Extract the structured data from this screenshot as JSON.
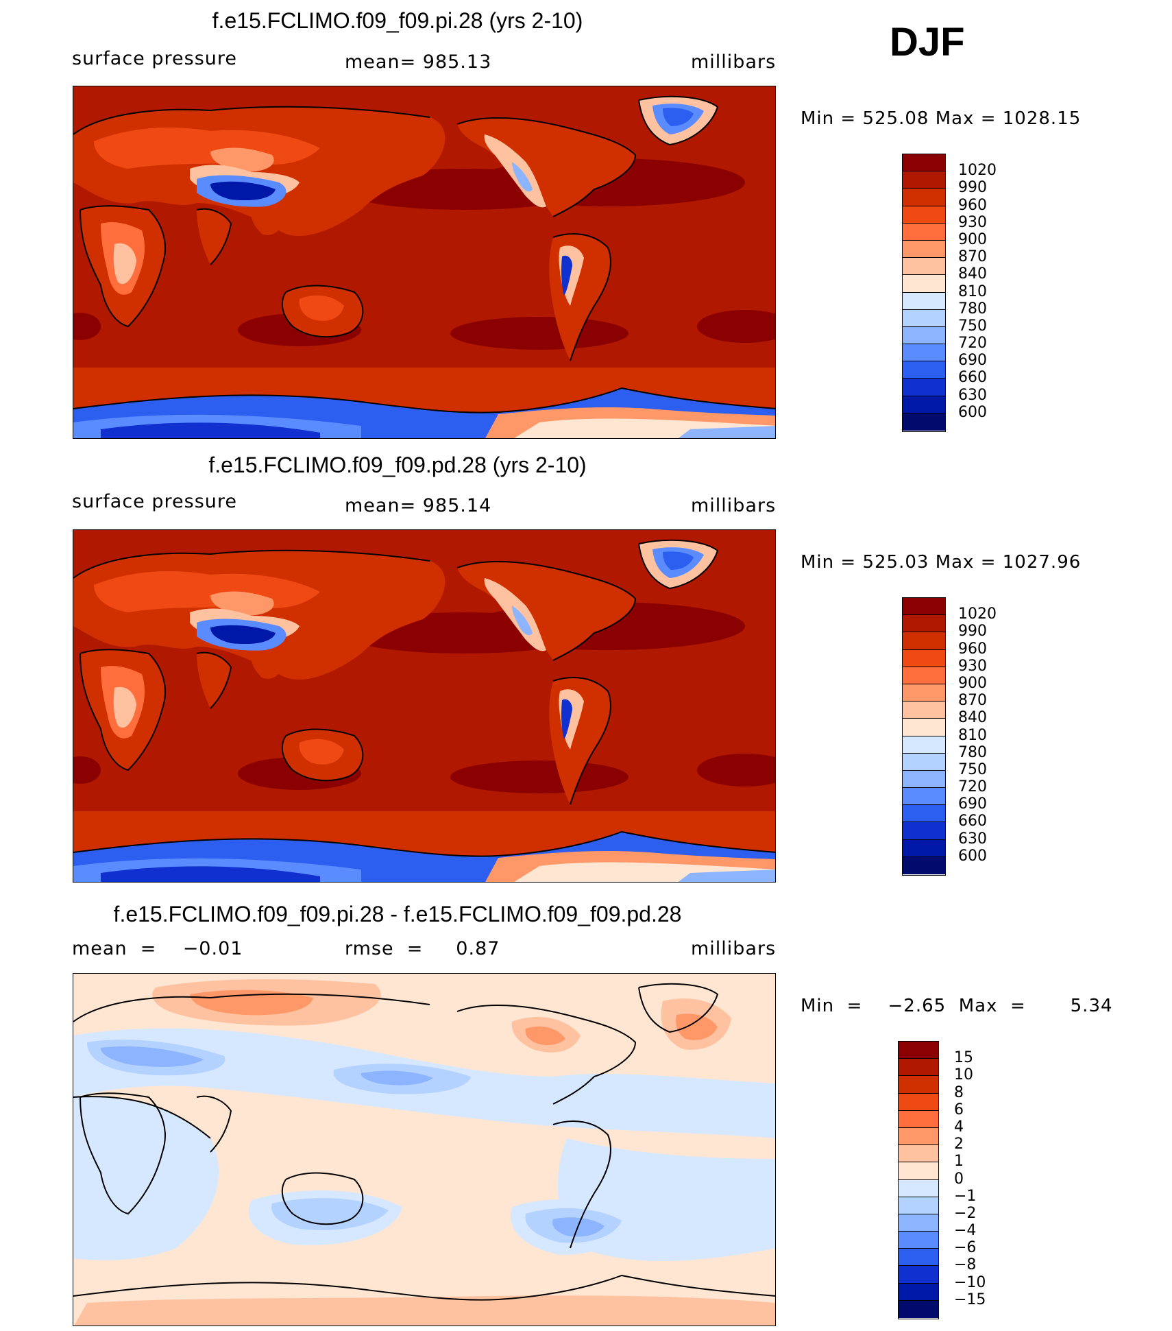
{
  "season": "DJF",
  "panels": [
    {
      "title": "f.e15.FCLIMO.f09_f09.pi.28 (yrs 2-10)",
      "left_text": "surface pressure",
      "center_text": "mean=  985.13",
      "units": "millibars",
      "minmax": "Min  =  525.08  Max  =  1028.15",
      "colorbar": {
        "labels": [
          "1020",
          "990",
          "960",
          "930",
          "900",
          "870",
          "840",
          "810",
          "780",
          "750",
          "720",
          "690",
          "660",
          "630",
          "600"
        ],
        "colors": [
          "#8b0000",
          "#b01800",
          "#d03000",
          "#f04a14",
          "#ff6e3c",
          "#ff9868",
          "#ffc2a0",
          "#ffe6d2",
          "#d6e8ff",
          "#b4d2ff",
          "#8cb4ff",
          "#5a8cff",
          "#2c5ef0",
          "#1030d0",
          "#0018a8",
          "#000b6e"
        ]
      }
    },
    {
      "title": "f.e15.FCLIMO.f09_f09.pd.28 (yrs 2-10)",
      "left_text": "surface pressure",
      "center_text": "mean=  985.14",
      "units": "millibars",
      "minmax": "Min  =  525.03  Max  =  1027.96",
      "colorbar": {
        "labels": [
          "1020",
          "990",
          "960",
          "930",
          "900",
          "870",
          "840",
          "810",
          "780",
          "750",
          "720",
          "690",
          "660",
          "630",
          "600"
        ],
        "colors": [
          "#8b0000",
          "#b01800",
          "#d03000",
          "#f04a14",
          "#ff6e3c",
          "#ff9868",
          "#ffc2a0",
          "#ffe6d2",
          "#d6e8ff",
          "#b4d2ff",
          "#8cb4ff",
          "#5a8cff",
          "#2c5ef0",
          "#1030d0",
          "#0018a8",
          "#000b6e"
        ]
      }
    },
    {
      "title": "f.e15.FCLIMO.f09_f09.pi.28 - f.e15.FCLIMO.f09_f09.pd.28",
      "left_text": "mean  =    −0.01",
      "center_text": "rmse  =     0.87",
      "units": "millibars",
      "minmax": "Min  =    −2.65  Max  =       5.34",
      "colorbar": {
        "labels": [
          "15",
          "10",
          "8",
          "6",
          "4",
          "2",
          "1",
          "0",
          "−1",
          "−2",
          "−4",
          "−6",
          "−8",
          "−10",
          "−15"
        ],
        "colors": [
          "#8b0000",
          "#b01800",
          "#d03000",
          "#f04a14",
          "#ff6e3c",
          "#ff9868",
          "#ffc2a0",
          "#ffe6d2",
          "#d6e8ff",
          "#b4d2ff",
          "#8cb4ff",
          "#5a8cff",
          "#2c5ef0",
          "#1030d0",
          "#0018a8",
          "#000b6e"
        ]
      }
    }
  ]
}
